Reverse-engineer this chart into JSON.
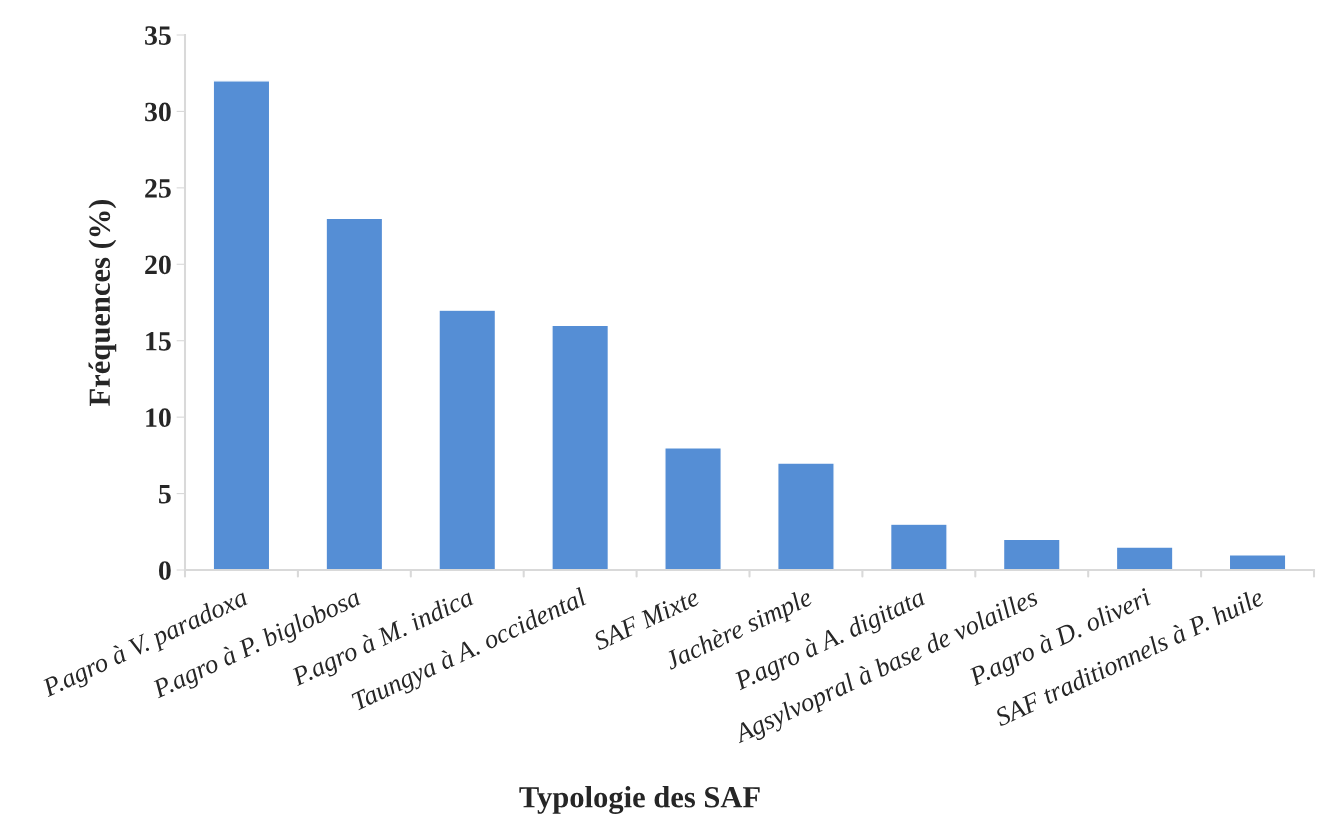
{
  "chart_data": {
    "type": "bar",
    "xlabel": "Typologie des SAF",
    "ylabel": "Fréquences (%)",
    "categories": [
      "P.agro à V. paradoxa",
      "P.agro à P. biglobosa",
      "P.agro à M. indica",
      "Taungya à A. occidental",
      "SAF Mixte",
      "Jachère simple",
      "P.agro à A. digitata",
      "Agsylvopral à base de volailles",
      "P.agro à D. oliveri",
      "SAF traditionnels à P. huile"
    ],
    "values": [
      32,
      23,
      17,
      16,
      8,
      7,
      3,
      2,
      1.5,
      1
    ],
    "color": "#558ed5",
    "ylim": [
      0,
      35
    ],
    "yticks": [
      0,
      5,
      10,
      15,
      20,
      25,
      30,
      35
    ],
    "grid": false
  }
}
